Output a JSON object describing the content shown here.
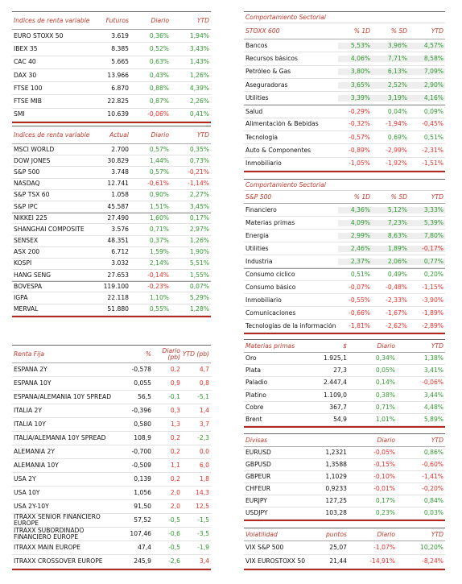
{
  "tables": [
    {
      "header": {
        "name": "Índices de renta variable",
        "col1": "Futuros",
        "col2": "Diario",
        "col3": "YTD"
      },
      "colored_columns": [
        2,
        3
      ],
      "positive_color": "#2f9a2f",
      "negative_color": "#e3302a",
      "groups": [
        [
          [
            "EURO STOXX 50",
            "3.619",
            "0,36%",
            "1,94%"
          ],
          [
            "IBEX 35",
            "8.385",
            "0,52%",
            "3,43%"
          ],
          [
            "CAC 40",
            "5.665",
            "0,63%",
            "1,43%"
          ],
          [
            "DAX 30",
            "13.966",
            "0,43%",
            "1,26%"
          ],
          [
            "FTSE 100",
            "6.870",
            "0,88%",
            "4,39%"
          ],
          [
            "FTSE MIB",
            "22.825",
            "0,87%",
            "2,26%"
          ],
          [
            "SMI",
            "10.639",
            "-0,06%",
            "0,41%"
          ]
        ]
      ]
    },
    {
      "header": {
        "name": "Índices de renta variable",
        "col1": "Actual",
        "col2": "Diario",
        "col3": "YTD"
      },
      "colored_columns": [
        2,
        3
      ],
      "positive_color": "#2f9a2f",
      "negative_color": "#e3302a",
      "groups": [
        [
          [
            "MSCI WORLD",
            "2.700",
            "0,57%",
            "0,35%"
          ],
          [
            "DOW JONES",
            "30.829",
            "1,44%",
            "0,73%"
          ],
          [
            "S&P 500",
            "3.748",
            "0,57%",
            "-0,21%"
          ],
          [
            "NASDAQ",
            "12.741",
            "-0,61%",
            "-1,14%"
          ],
          [
            "S&P TSX 60",
            "1.058",
            "0,90%",
            "2,27%"
          ],
          [
            "S&P IPC",
            "45.587",
            "1,51%",
            "3,45%"
          ]
        ],
        [
          [
            "NIKKEI 225",
            "27.490",
            "1,60%",
            "0,17%"
          ],
          [
            "SHANGHAI COMPOSITE",
            "3.576",
            "0,71%",
            "2,97%"
          ],
          [
            "SENSEX",
            "48.351",
            "0,37%",
            "1,26%"
          ],
          [
            "ASX 200",
            "6.712",
            "1,59%",
            "1,90%"
          ],
          [
            "KOSPI",
            "3.032",
            "2,14%",
            "5,51%"
          ],
          [
            "HANG SENG",
            "27.653",
            "-0,14%",
            "1,55%"
          ]
        ],
        [
          [
            "BOVESPA",
            "119.100",
            "-0,23%",
            "0,07%"
          ],
          [
            "IGPA",
            "22.118",
            "1,10%",
            "5,29%"
          ],
          [
            "MERVAL",
            "51.880",
            "0,55%",
            "1,28%"
          ]
        ]
      ]
    },
    {
      "header": {
        "name": "Renta Fija",
        "col1": "%",
        "col2": "Diario (pb)",
        "col3": "YTD (pb)"
      },
      "colored_columns": [
        2,
        3
      ],
      "positive_color": "#e3302a",
      "negative_color": "#2f9a2f",
      "groups": [
        [
          [
            "ESPAÑA 2Y",
            "-0,578",
            "0,2",
            "4,7"
          ],
          [
            "ESPAÑA 10Y",
            "0,055",
            "0,9",
            "0,8"
          ],
          [
            "ESPAÑA/ALEMANIA 10Y SPREAD",
            "56,5",
            "-0,1",
            "-5,1"
          ],
          [
            "ITALIA 2Y",
            "-0,396",
            "0,3",
            "1,4"
          ],
          [
            "ITALIA 10Y",
            "0,580",
            "1,3",
            "3,7"
          ],
          [
            "ITALIA/ALEMANIA 10Y SPREAD",
            "108,9",
            "0,2",
            "-2,3"
          ],
          [
            "ALEMANIA 2Y",
            "-0,700",
            "0,2",
            "0,0"
          ],
          [
            "ALEMANIA 10Y",
            "-0,509",
            "1,1",
            "6,0"
          ],
          [
            "USA 2Y",
            "0,139",
            "0,2",
            "1,8"
          ],
          [
            "USA 10Y",
            "1,056",
            "2,0",
            "14,3"
          ],
          [
            "USA 2Y-10Y",
            "91,50",
            "2,0",
            "12,5"
          ],
          [
            "ITRAXX SENIOR FINANCIERO EUROPE",
            "57,52",
            "-0,5",
            "-1,5"
          ],
          [
            "ITRAXX SUBORDINADO FINANCIERO EUROPE",
            "107,46",
            "-0,6",
            "-3,5"
          ],
          [
            "ITRAXX MAIN EUROPE",
            "47,4",
            "-0,5",
            "-1,9"
          ],
          [
            "ITRAXX CROSSOVER EUROPE",
            "245,9",
            "-2,6",
            "3,4"
          ]
        ]
      ]
    },
    {
      "header": {
        "name": "Comportamiento Sectorial",
        "subtitle": "STOXX 600",
        "col1": "% 1D",
        "col2": "% 5D",
        "col3": "YTD"
      },
      "colored_columns": [
        1,
        2,
        3
      ],
      "positive_color": "#2f9a2f",
      "negative_color": "#e3302a",
      "groups": [
        [
          [
            "Bancos",
            "5,53%",
            "3,96%",
            "4,57%"
          ],
          [
            "Recursos básicos",
            "4,06%",
            "7,71%",
            "8,58%"
          ],
          [
            "Petróleo & Gas",
            "3,80%",
            "6,13%",
            "7,09%"
          ],
          [
            "Aseguradoras",
            "3,65%",
            "2,52%",
            "2,90%"
          ],
          [
            "Utilities",
            "3,39%",
            "3,19%",
            "4,16%"
          ]
        ],
        [
          [
            "Salud",
            "-0,29%",
            "0,04%",
            "0,09%"
          ],
          [
            "Alimentación & Bebidas",
            "-0,32%",
            "-1,94%",
            "-0,45%"
          ],
          [
            "Tecnología",
            "-0,57%",
            "0,69%",
            "0,51%"
          ],
          [
            "Auto & Componentes",
            "-0,89%",
            "-2,99%",
            "-2,31%"
          ],
          [
            "Inmobiliario",
            "-1,05%",
            "-1,92%",
            "-1,51%"
          ]
        ]
      ]
    },
    {
      "header": {
        "name": "Comportamiento Sectorial",
        "subtitle": "S&P 500",
        "col1": "% 1D",
        "col2": "% 5D",
        "col3": "YTD"
      },
      "colored_columns": [
        1,
        2,
        3
      ],
      "positive_color": "#2f9a2f",
      "negative_color": "#e3302a",
      "groups": [
        [
          [
            "Financiero",
            "4,36%",
            "5,12%",
            "3,33%"
          ],
          [
            "Materias primas",
            "4,09%",
            "7,23%",
            "5,39%"
          ],
          [
            "Energía",
            "2,99%",
            "8,63%",
            "7,80%"
          ],
          [
            "Utilities",
            "2,46%",
            "1,89%",
            "-0,17%"
          ],
          [
            "Industria",
            "2,37%",
            "2,06%",
            "0,77%"
          ]
        ],
        [
          [
            "Consumo cíclico",
            "0,51%",
            "0,49%",
            "0,20%"
          ],
          [
            "Consumo básico",
            "-0,07%",
            "-0,48%",
            "-1,15%"
          ],
          [
            "Inmobiliario",
            "-0,55%",
            "-2,33%",
            "-3,90%"
          ],
          [
            "Comunicaciones",
            "-0,66%",
            "-1,67%",
            "-1,89%"
          ],
          [
            "Tecnologías de la información",
            "-1,81%",
            "-2,62%",
            "-2,89%"
          ]
        ]
      ]
    },
    {
      "header": {
        "name": "Materias primas",
        "col1": "$",
        "col2": "Diario",
        "col3": "YTD"
      },
      "colored_columns": [
        2,
        3
      ],
      "positive_color": "#2f9a2f",
      "negative_color": "#e3302a",
      "groups": [
        [
          [
            "Oro",
            "1.925,1",
            "0,34%",
            "1,38%"
          ],
          [
            "Plata",
            "27,3",
            "0,05%",
            "3,41%"
          ],
          [
            "Paladio",
            "2.447,4",
            "0,14%",
            "-0,06%"
          ],
          [
            "Platino",
            "1.109,0",
            "0,38%",
            "3,44%"
          ],
          [
            "Cobre",
            "367,7",
            "0,71%",
            "4,48%"
          ],
          [
            "Brent",
            "54,9",
            "1,01%",
            "5,89%"
          ]
        ]
      ]
    },
    {
      "header": {
        "name": "Divisas",
        "col2": "Diario",
        "col3": "YTD"
      },
      "colored_columns": [
        2,
        3
      ],
      "positive_color": "#2f9a2f",
      "negative_color": "#e3302a",
      "groups": [
        [
          [
            "EURUSD",
            "1,2321",
            "-0,05%",
            "0,86%"
          ],
          [
            "GBPUSD",
            "1,3588",
            "-0,15%",
            "-0,60%"
          ],
          [
            "GBPEUR",
            "1,1029",
            "-0,10%",
            "-1,41%"
          ],
          [
            "CHFEUR",
            "0,9233",
            "-0,01%",
            "-0,20%"
          ],
          [
            "EURJPY",
            "127,25",
            "0,17%",
            "0,84%"
          ],
          [
            "USDJPY",
            "103,28",
            "0,23%",
            "0,03%"
          ]
        ]
      ]
    },
    {
      "header": {
        "name": "Volatilidad",
        "col1": "puntos",
        "col2": "Diario",
        "col3": "YTD"
      },
      "colored_columns": [
        2,
        3
      ],
      "positive_color": "#2f9a2f",
      "negative_color": "#e3302a",
      "groups": [
        [
          [
            "VIX S&P 500",
            "25,07",
            "-1,07%",
            "10,20%"
          ],
          [
            "VIX EUROSTOXX 50",
            "21,44",
            "-14,91%",
            "-8,24%"
          ]
        ]
      ]
    }
  ]
}
